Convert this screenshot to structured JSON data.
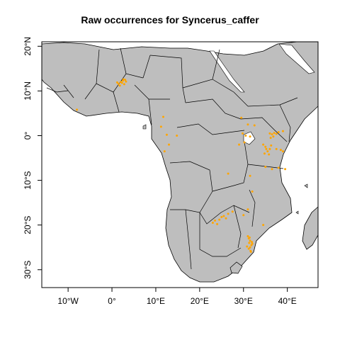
{
  "title": "Raw occurrences for Syncerus_caffer",
  "map": {
    "land_color": "#bebebe",
    "border_color": "#000000",
    "water_color": "#ffffff",
    "point_color": "#ffa500",
    "extent": {
      "lon": [
        -16,
        47
      ],
      "lat": [
        -34,
        21
      ]
    },
    "x_ticks": [
      {
        "value": -10,
        "label": "10°W"
      },
      {
        "value": 0,
        "label": "0°"
      },
      {
        "value": 10,
        "label": "10°E"
      },
      {
        "value": 20,
        "label": "20°E"
      },
      {
        "value": 30,
        "label": "30°E"
      },
      {
        "value": 40,
        "label": "40°E"
      }
    ],
    "y_ticks": [
      {
        "value": 20,
        "label": "20°N"
      },
      {
        "value": 10,
        "label": "10°N"
      },
      {
        "value": 0,
        "label": "0°"
      },
      {
        "value": -10,
        "label": "10°S"
      },
      {
        "value": -20,
        "label": "20°S"
      },
      {
        "value": -30,
        "label": "30°S"
      }
    ],
    "occurrences": [
      [
        1.5,
        11.6
      ],
      [
        2.0,
        12.0
      ],
      [
        2.5,
        12.3
      ],
      [
        3.0,
        12.5
      ],
      [
        1.8,
        11.2
      ],
      [
        2.3,
        11.8
      ],
      [
        2.8,
        11.5
      ],
      [
        3.2,
        12.1
      ],
      [
        1.2,
        11.9
      ],
      [
        2.6,
        12.6
      ],
      [
        -8.0,
        5.8
      ],
      [
        11.7,
        4.2
      ],
      [
        11.2,
        2.0
      ],
      [
        12.5,
        0.2
      ],
      [
        14.8,
        0.0
      ],
      [
        12.0,
        -3.5
      ],
      [
        13.0,
        -2.0
      ],
      [
        29.5,
        4.0
      ],
      [
        31.0,
        2.5
      ],
      [
        32.5,
        2.3
      ],
      [
        29.8,
        0.5
      ],
      [
        30.5,
        0.0
      ],
      [
        31.5,
        -0.2
      ],
      [
        30.2,
        -1.5
      ],
      [
        29.0,
        -2.0
      ],
      [
        36.0,
        0.5
      ],
      [
        36.5,
        0.3
      ],
      [
        37.0,
        0.6
      ],
      [
        36.8,
        -0.2
      ],
      [
        37.5,
        0.4
      ],
      [
        36.2,
        -0.5
      ],
      [
        38.0,
        0.8
      ],
      [
        39.0,
        1.0
      ],
      [
        34.5,
        -2.0
      ],
      [
        35.0,
        -2.5
      ],
      [
        35.5,
        -3.5
      ],
      [
        36.0,
        -3.0
      ],
      [
        34.8,
        -4.0
      ],
      [
        36.3,
        -2.2
      ],
      [
        37.5,
        -3.0
      ],
      [
        38.5,
        -3.2
      ],
      [
        39.0,
        -3.5
      ],
      [
        35.2,
        -3.0
      ],
      [
        35.8,
        -4.2
      ],
      [
        35.0,
        -7.0
      ],
      [
        36.5,
        -7.5
      ],
      [
        38.0,
        -7.2
      ],
      [
        39.5,
        -7.5
      ],
      [
        26.5,
        -8.5
      ],
      [
        31.5,
        -9.0
      ],
      [
        32.0,
        -12.5
      ],
      [
        23.0,
        -19.5
      ],
      [
        23.5,
        -19.0
      ],
      [
        24.0,
        -19.8
      ],
      [
        25.0,
        -18.2
      ],
      [
        25.5,
        -18.0
      ],
      [
        26.0,
        -18.5
      ],
      [
        24.5,
        -18.8
      ],
      [
        26.5,
        -17.5
      ],
      [
        27.5,
        -17.0
      ],
      [
        30.0,
        -17.8
      ],
      [
        31.0,
        -16.5
      ],
      [
        34.5,
        -20.0
      ],
      [
        31.0,
        -22.5
      ],
      [
        31.2,
        -23.0
      ],
      [
        31.5,
        -23.5
      ],
      [
        31.3,
        -24.0
      ],
      [
        31.8,
        -24.5
      ],
      [
        31.5,
        -25.0
      ],
      [
        31.2,
        -25.3
      ],
      [
        31.6,
        -25.8
      ],
      [
        31.9,
        -23.8
      ],
      [
        32.0,
        -24.2
      ],
      [
        31.4,
        -22.8
      ],
      [
        30.8,
        -24.8
      ],
      [
        31.7,
        -26.0
      ]
    ]
  }
}
